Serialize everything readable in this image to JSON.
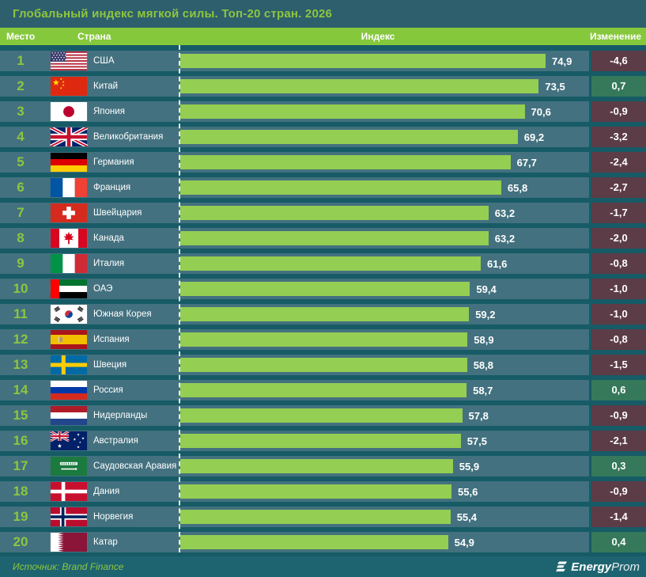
{
  "header": {
    "title": "Глобальный индекс мягкой силы. Топ-20 стран. 2026"
  },
  "columns": {
    "place": "Место",
    "country": "Страна",
    "index": "Индекс",
    "change": "Изменение"
  },
  "footer": {
    "source": "Источник: Brand Finance",
    "logo_icon": "energyprom-logo",
    "logo_bold": "Energy",
    "logo_light": "Prom"
  },
  "colors": {
    "page_bg": "#165B66",
    "panel_bg": "#2E5F6D",
    "row_bg": "#43717F",
    "accent_green": "#8DC63F",
    "bar_green": "#94CE52",
    "strip_green": "#86C83C",
    "neg_bg": "#5C3C47",
    "pos_bg": "#35795A",
    "footer_bg": "#1E6470",
    "white": "#FFFFFF"
  },
  "chart_data": {
    "type": "bar",
    "orientation": "horizontal",
    "title": "Глобальный индекс мягкой силы. Топ-20 стран. 2026",
    "value_column": "Индекс",
    "change_column": "Изменение",
    "decimal_separator": ",",
    "bars_scaled_to_max": 74.9,
    "rows": [
      {
        "rank": 1,
        "country": "США",
        "flag_icon": "flag-us",
        "value": 74.9,
        "change": -4.6
      },
      {
        "rank": 2,
        "country": "Китай",
        "flag_icon": "flag-cn",
        "value": 73.5,
        "change": 0.7
      },
      {
        "rank": 3,
        "country": "Япония",
        "flag_icon": "flag-jp",
        "value": 70.6,
        "change": -0.9
      },
      {
        "rank": 4,
        "country": "Великобритания",
        "flag_icon": "flag-gb",
        "value": 69.2,
        "change": -3.2
      },
      {
        "rank": 5,
        "country": "Германия",
        "flag_icon": "flag-de",
        "value": 67.7,
        "change": -2.4
      },
      {
        "rank": 6,
        "country": "Франция",
        "flag_icon": "flag-fr",
        "value": 65.8,
        "change": -2.7
      },
      {
        "rank": 7,
        "country": "Швейцария",
        "flag_icon": "flag-ch",
        "value": 63.2,
        "change": -1.7
      },
      {
        "rank": 8,
        "country": "Канада",
        "flag_icon": "flag-ca",
        "value": 63.2,
        "change": -2.0
      },
      {
        "rank": 9,
        "country": "Италия",
        "flag_icon": "flag-it",
        "value": 61.6,
        "change": -0.8
      },
      {
        "rank": 10,
        "country": "ОАЭ",
        "flag_icon": "flag-ae",
        "value": 59.4,
        "change": -1.0
      },
      {
        "rank": 11,
        "country": "Южная Корея",
        "flag_icon": "flag-kr",
        "value": 59.2,
        "change": -1.0
      },
      {
        "rank": 12,
        "country": "Испания",
        "flag_icon": "flag-es",
        "value": 58.9,
        "change": -0.8
      },
      {
        "rank": 13,
        "country": "Швеция",
        "flag_icon": "flag-se",
        "value": 58.8,
        "change": -1.5
      },
      {
        "rank": 14,
        "country": "Россия",
        "flag_icon": "flag-ru",
        "value": 58.7,
        "change": 0.6
      },
      {
        "rank": 15,
        "country": "Нидерланды",
        "flag_icon": "flag-nl",
        "value": 57.8,
        "change": -0.9
      },
      {
        "rank": 16,
        "country": "Австралия",
        "flag_icon": "flag-au",
        "value": 57.5,
        "change": -2.1
      },
      {
        "rank": 17,
        "country": "Саудовская Аравия",
        "flag_icon": "flag-sa",
        "value": 55.9,
        "change": 0.3
      },
      {
        "rank": 18,
        "country": "Дания",
        "flag_icon": "flag-dk",
        "value": 55.6,
        "change": -0.9
      },
      {
        "rank": 19,
        "country": "Норвегия",
        "flag_icon": "flag-no",
        "value": 55.4,
        "change": -1.4
      },
      {
        "rank": 20,
        "country": "Катар",
        "flag_icon": "flag-qa",
        "value": 54.9,
        "change": 0.4
      }
    ]
  }
}
